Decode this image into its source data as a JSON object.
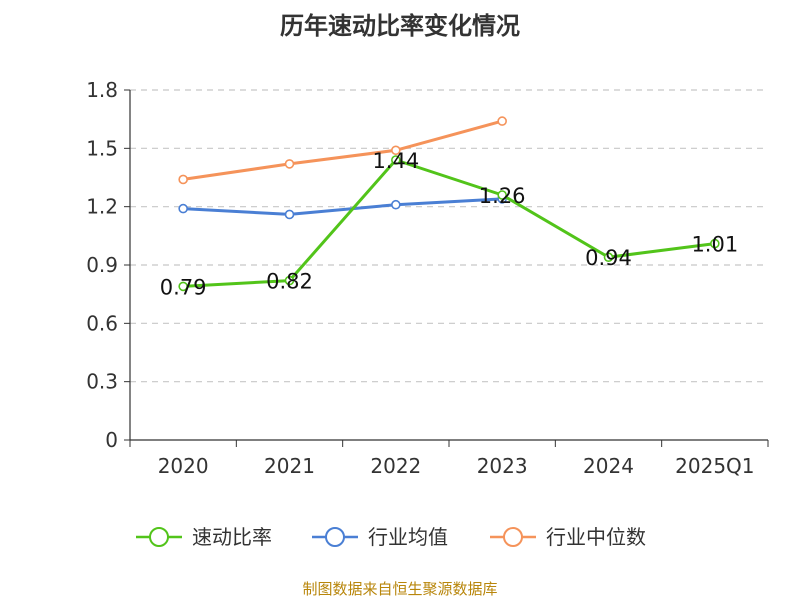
{
  "chart_data": {
    "type": "line",
    "title": "历年速动比率变化情况",
    "categories": [
      "2020",
      "2021",
      "2022",
      "2023",
      "2024",
      "2025Q1"
    ],
    "ylim": [
      0,
      1.8
    ],
    "yticks": [
      "0",
      "0.3",
      "0.6",
      "0.9",
      "1.2",
      "1.5",
      "1.8"
    ],
    "grid": true,
    "legend_position": "bottom",
    "series": [
      {
        "name": "速动比率",
        "color": "#52c41a",
        "values": [
          0.79,
          0.82,
          1.44,
          1.26,
          0.94,
          1.01
        ],
        "show_labels": true
      },
      {
        "name": "行业均值",
        "color": "#4a7fd4",
        "values": [
          1.19,
          1.16,
          1.21,
          1.24,
          null,
          null
        ],
        "show_labels": false
      },
      {
        "name": "行业中位数",
        "color": "#f5935a",
        "values": [
          1.34,
          1.42,
          1.49,
          1.64,
          null,
          null
        ],
        "show_labels": false
      }
    ],
    "data_labels": [
      "0.79",
      "0.82",
      "1.44",
      "1.26",
      "0.94",
      "1.01"
    ]
  },
  "source": "制图数据来自恒生聚源数据库"
}
